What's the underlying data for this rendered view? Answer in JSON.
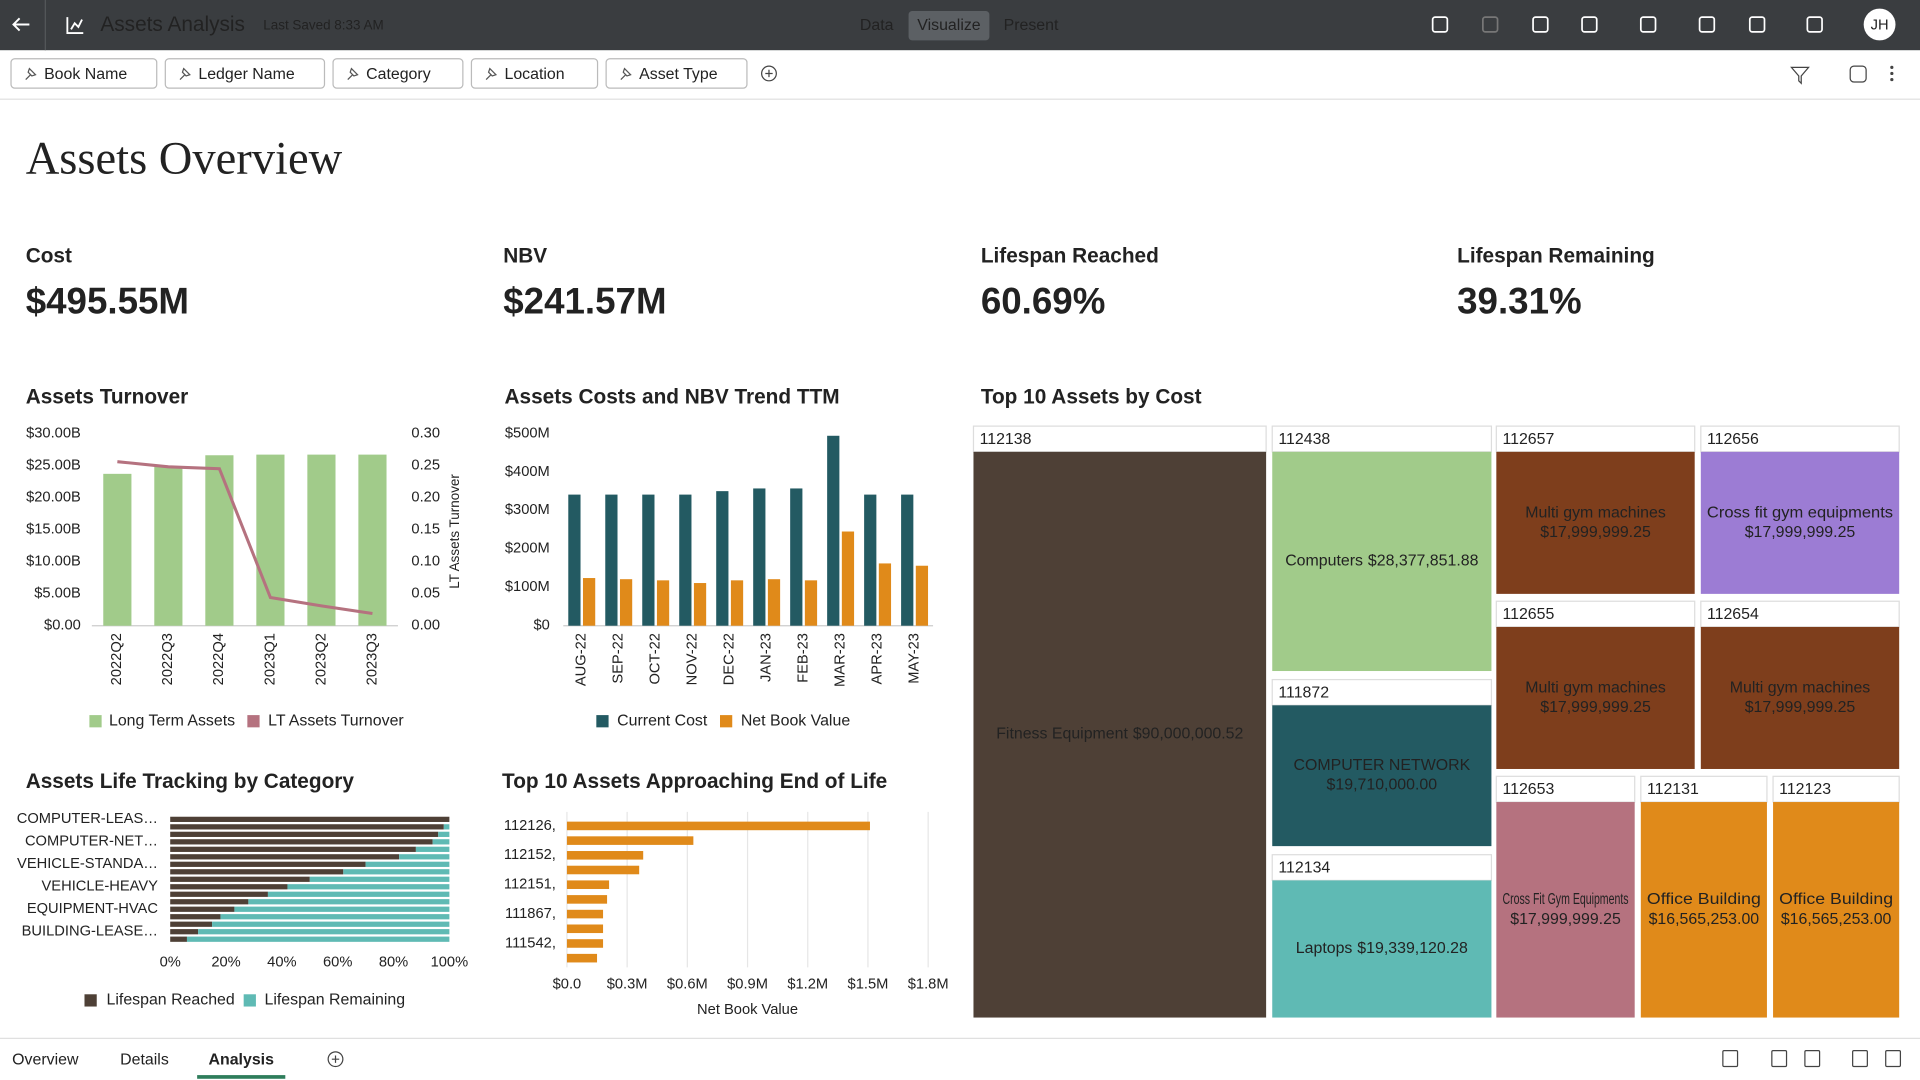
{
  "app_title": "Assets Analysis",
  "last_saved": "Last Saved 8:33 AM",
  "nav": [
    "Data",
    "Visualize",
    "Present"
  ],
  "user_initials": "JH",
  "filters": [
    "Book Name",
    "Ledger Name",
    "Category",
    "Location",
    "Asset Type"
  ],
  "page_title": "Assets Overview",
  "kpis": [
    {
      "label": "Cost",
      "value": "$495.55M"
    },
    {
      "label": "NBV",
      "value": "$241.57M"
    },
    {
      "label": "Lifespan Reached",
      "value": "60.69%"
    },
    {
      "label": "Lifespan Remaining",
      "value": "39.31%"
    }
  ],
  "chart_data": [
    {
      "type": "bar-line",
      "title": "Assets Turnover",
      "categories": [
        "2022Q2",
        "2022Q3",
        "2022Q4",
        "2023Q1",
        "2023Q2",
        "2023Q3"
      ],
      "series": [
        {
          "name": "Long Term Assets",
          "color": "#a1cb8a",
          "values": [
            23.7,
            24.8,
            26.6,
            26.7,
            26.7,
            26.7
          ]
        },
        {
          "name": "LT Assets Turnover",
          "color": "#b5727f",
          "axis": "y2",
          "values": [
            0.256,
            0.248,
            0.245,
            0.044,
            0.031,
            0.019
          ]
        }
      ],
      "ylim": [
        0,
        30
      ],
      "yticks": [
        {
          "value": 0,
          "label": "$0.00"
        },
        {
          "value": 5,
          "label": "$5.00B"
        },
        {
          "value": 10,
          "label": "$10.00B"
        },
        {
          "value": 15,
          "label": "$15.00B"
        },
        {
          "value": 20,
          "label": "$20.00B"
        },
        {
          "value": 25,
          "label": "$25.00B"
        },
        {
          "value": 30,
          "label": "$30.00B"
        }
      ],
      "y2lim": [
        0,
        0.3
      ],
      "y2ticks": [
        {
          "value": 0,
          "label": "0.00"
        },
        {
          "value": 0.05,
          "label": "0.05"
        },
        {
          "value": 0.1,
          "label": "0.10"
        },
        {
          "value": 0.15,
          "label": "0.15"
        },
        {
          "value": 0.2,
          "label": "0.20"
        },
        {
          "value": 0.25,
          "label": "0.25"
        },
        {
          "value": 0.3,
          "label": "0.30"
        }
      ],
      "y2label": "LT Assets Turnover"
    },
    {
      "type": "grouped-bar",
      "title": "Assets Costs and NBV Trend TTM",
      "categories": [
        "AUG-22",
        "SEP-22",
        "OCT-22",
        "NOV-22",
        "DEC-22",
        "JAN-23",
        "FEB-23",
        "MAR-23",
        "APR-23",
        "MAY-23"
      ],
      "series": [
        {
          "name": "Current Cost",
          "color": "#235a62",
          "values": [
            341,
            341,
            341,
            341,
            350,
            357,
            357,
            494,
            341,
            341
          ]
        },
        {
          "name": "Net Book Value",
          "color": "#e08a1a",
          "values": [
            124,
            121,
            118,
            111,
            118,
            121,
            118,
            245,
            162,
            156
          ]
        }
      ],
      "ylim": [
        0,
        500
      ],
      "yticks": [
        {
          "value": 0,
          "label": "$0"
        },
        {
          "value": 100,
          "label": "$100M"
        },
        {
          "value": 200,
          "label": "$200M"
        },
        {
          "value": 300,
          "label": "$300M"
        },
        {
          "value": 400,
          "label": "$400M"
        },
        {
          "value": 500,
          "label": "$500M"
        }
      ]
    },
    {
      "type": "stacked-bar-h",
      "title": "Assets Life Tracking by Category",
      "categories": [
        "COMPUTER-LEAS…",
        null,
        null,
        "COMPUTER-NET…",
        null,
        null,
        "VEHICLE-STANDA…",
        null,
        null,
        "VEHICLE-HEAVY",
        null,
        null,
        "EQUIPMENT-HVAC",
        null,
        null,
        "BUILDING-LEASE…",
        null
      ],
      "series": [
        {
          "name": "Lifespan Reached",
          "color": "#4e4036",
          "values": [
            100,
            98,
            96,
            94,
            88,
            82,
            70,
            62,
            50,
            42,
            35,
            28,
            23,
            18,
            15,
            10,
            6
          ]
        },
        {
          "name": "Lifespan Remaining",
          "color": "#5fbab4",
          "values": [
            0,
            2,
            4,
            6,
            12,
            18,
            30,
            38,
            50,
            58,
            65,
            72,
            77,
            82,
            85,
            90,
            94
          ]
        }
      ],
      "xlim": [
        0,
        100
      ],
      "xticks": [
        {
          "value": 0,
          "label": "0%"
        },
        {
          "value": 20,
          "label": "20%"
        },
        {
          "value": 40,
          "label": "40%"
        },
        {
          "value": 60,
          "label": "60%"
        },
        {
          "value": 80,
          "label": "80%"
        },
        {
          "value": 100,
          "label": "100%"
        }
      ]
    },
    {
      "type": "bar-h",
      "title": "Top 10 Assets Approaching End of Life",
      "categories": [
        "112126,",
        null,
        "112152,",
        null,
        "112151,",
        null,
        "111867,",
        null,
        "111542,",
        null
      ],
      "values": [
        1.51,
        0.63,
        0.38,
        0.36,
        0.21,
        0.2,
        0.18,
        0.18,
        0.18,
        0.15
      ],
      "color": "#e08a1a",
      "xlim": [
        0,
        1.8
      ],
      "xticks": [
        {
          "value": 0,
          "label": "$0.0"
        },
        {
          "value": 0.3,
          "label": "$0.3M"
        },
        {
          "value": 0.6,
          "label": "$0.6M"
        },
        {
          "value": 0.9,
          "label": "$0.9M"
        },
        {
          "value": 1.2,
          "label": "$1.2M"
        },
        {
          "value": 1.5,
          "label": "$1.5M"
        },
        {
          "value": 1.8,
          "label": "$1.8M"
        }
      ],
      "xlabel": "Net Book Value",
      "grid": true
    },
    {
      "type": "treemap",
      "title": "Top 10 Assets by Cost",
      "items": [
        {
          "id": "112138",
          "name": "Fitness Equipment",
          "value": 90000000.52,
          "value_label": "$90,000,000.52",
          "color": "#4e4036"
        },
        {
          "id": "112438",
          "name": "Computers",
          "value": 28377851.88,
          "value_label": "$28,377,851.88",
          "color": "#a1cb8a"
        },
        {
          "id": "111872",
          "name": "COMPUTER NETWORK",
          "value": 19710000,
          "value_label": "$19,710,000.00",
          "color": "#235a62"
        },
        {
          "id": "112134",
          "name": "Laptops",
          "value": 19339120.28,
          "value_label": "$19,339,120.28",
          "color": "#5fbab4"
        },
        {
          "id": "112657",
          "name": "Multi gym machines",
          "value": 17999999.25,
          "value_label": "$17,999,999.25",
          "color": "#7e3e1c"
        },
        {
          "id": "112656",
          "name": "Cross fit gym equipments",
          "value": 17999999.25,
          "value_label": "$17,999,999.25",
          "color": "#9c7cd4"
        },
        {
          "id": "112655",
          "name": "Multi gym machines",
          "value": 17999999.25,
          "value_label": "$17,999,999.25",
          "color": "#7e3e1c"
        },
        {
          "id": "112654",
          "name": "Multi gym machines",
          "value": 17999999.25,
          "value_label": "$17,999,999.25",
          "color": "#7e3e1c"
        },
        {
          "id": "112653",
          "name": "Cross Fit Gym Equipments",
          "value": 17999999.25,
          "value_label": "$17,999,999.25",
          "color": "#b5727f"
        },
        {
          "id": "112131",
          "name": "Office Building",
          "value": 16565253,
          "value_label": "$16,565,253.00",
          "color": "#e08a1a"
        },
        {
          "id": "112123",
          "name": "Office Building",
          "value": 16565253,
          "value_label": "$16,565,253.00",
          "color": "#e08a1a"
        }
      ]
    }
  ],
  "tabs": [
    "Overview",
    "Details",
    "Analysis"
  ]
}
